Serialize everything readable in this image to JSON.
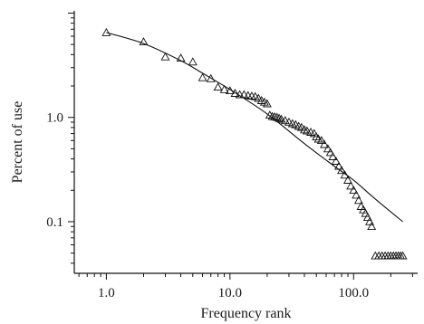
{
  "chart_data": {
    "type": "scatter",
    "xlabel": "Frequency rank",
    "ylabel": "Percent of use",
    "x_scale": "log",
    "y_scale": "log",
    "xlim": [
      0.55,
      330
    ],
    "ylim": [
      0.032,
      10.5
    ],
    "x_ticks": [
      {
        "value": 1,
        "label": "1.0"
      },
      {
        "value": 10,
        "label": "10.0"
      },
      {
        "value": 100,
        "label": "100.0"
      }
    ],
    "y_ticks": [
      {
        "value": 0.1,
        "label": "0.1"
      },
      {
        "value": 1,
        "label": "1.0"
      }
    ],
    "grid": false,
    "series": [
      {
        "marker": "open-triangle",
        "points": [
          [
            1,
            6.5
          ],
          [
            2,
            5.3
          ],
          [
            3,
            3.8
          ],
          [
            4,
            3.7
          ],
          [
            5,
            3.4
          ],
          [
            6,
            2.4
          ],
          [
            7,
            2.35
          ],
          [
            8,
            1.95
          ],
          [
            9,
            1.85
          ],
          [
            10,
            1.8
          ],
          [
            11,
            1.7
          ],
          [
            12,
            1.65
          ],
          [
            13,
            1.65
          ],
          [
            14,
            1.62
          ],
          [
            15,
            1.6
          ],
          [
            16,
            1.58
          ],
          [
            17,
            1.52
          ],
          [
            18,
            1.45
          ],
          [
            19,
            1.4
          ],
          [
            20,
            1.35
          ],
          [
            21,
            1.05
          ],
          [
            22,
            1.02
          ],
          [
            23,
            1.01
          ],
          [
            24,
            1.0
          ],
          [
            25,
            0.98
          ],
          [
            26,
            0.96
          ],
          [
            28,
            0.93
          ],
          [
            30,
            0.9
          ],
          [
            32,
            0.87
          ],
          [
            34,
            0.85
          ],
          [
            36,
            0.82
          ],
          [
            38,
            0.8
          ],
          [
            40,
            0.76
          ],
          [
            42,
            0.74
          ],
          [
            45,
            0.72
          ],
          [
            48,
            0.7
          ],
          [
            50,
            0.65
          ],
          [
            52,
            0.62
          ],
          [
            55,
            0.6
          ],
          [
            58,
            0.55
          ],
          [
            62,
            0.5
          ],
          [
            65,
            0.46
          ],
          [
            68,
            0.42
          ],
          [
            72,
            0.38
          ],
          [
            76,
            0.34
          ],
          [
            80,
            0.31
          ],
          [
            85,
            0.28
          ],
          [
            90,
            0.25
          ],
          [
            95,
            0.22
          ],
          [
            100,
            0.2
          ],
          [
            105,
            0.18
          ],
          [
            110,
            0.16
          ],
          [
            115,
            0.14
          ],
          [
            120,
            0.13
          ],
          [
            125,
            0.12
          ],
          [
            130,
            0.11
          ],
          [
            135,
            0.1
          ],
          [
            140,
            0.09
          ],
          [
            150,
            0.047
          ],
          [
            160,
            0.047
          ],
          [
            170,
            0.047
          ],
          [
            180,
            0.047
          ],
          [
            190,
            0.047
          ],
          [
            200,
            0.047
          ],
          [
            210,
            0.047
          ],
          [
            220,
            0.047
          ],
          [
            230,
            0.047
          ],
          [
            240,
            0.047
          ],
          [
            250,
            0.047
          ]
        ]
      }
    ],
    "fit_line": {
      "style": "solid",
      "points": [
        [
          1,
          6.5
        ],
        [
          2,
          5.1
        ],
        [
          4,
          3.5
        ],
        [
          6,
          2.65
        ],
        [
          10,
          1.85
        ],
        [
          20,
          1.08
        ],
        [
          40,
          0.56
        ],
        [
          70,
          0.34
        ],
        [
          100,
          0.25
        ],
        [
          150,
          0.165
        ],
        [
          250,
          0.1
        ]
      ]
    }
  }
}
